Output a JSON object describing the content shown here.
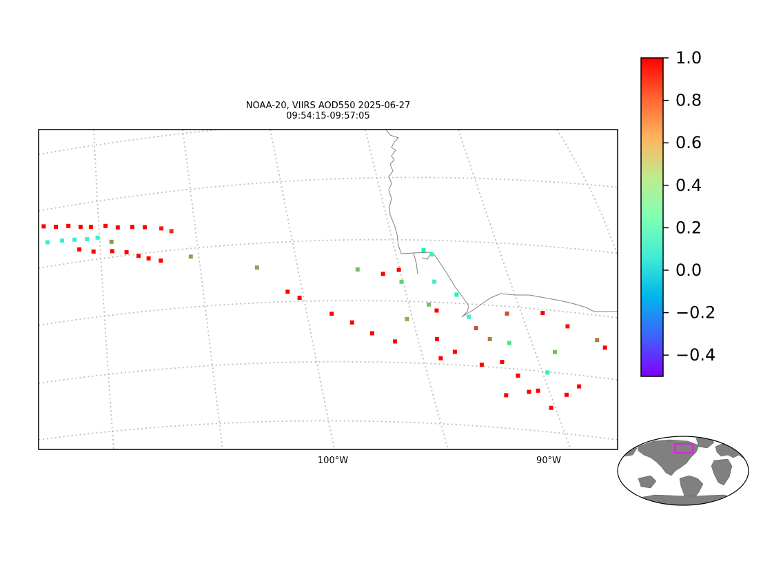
{
  "chart_data": {
    "type": "scatter",
    "title_line1": "NOAA-20, VIIRS AOD550 2025-06-27",
    "title_line2": "09:54:15-09:57:05",
    "x_tick_labels": [
      "100°W",
      "90°W"
    ],
    "colorbar": {
      "colormap": "rainbow",
      "vmin": -0.5,
      "vmax": 1.0,
      "tick_values": [
        1.0,
        0.8,
        0.6,
        0.4,
        0.2,
        0.0,
        -0.2,
        -0.4
      ],
      "tick_labels": [
        "1.0",
        "0.8",
        "0.6",
        "0.4",
        "0.2",
        "0.0",
        "−0.2",
        "−0.4"
      ]
    },
    "gridlines": true,
    "inset": "world-overview",
    "points": [
      [
        -120.2,
        52.9,
        1.0
      ],
      [
        -119.5,
        52.5,
        1.0
      ],
      [
        -118.9,
        52.3,
        1.0
      ],
      [
        -118.3,
        51.8,
        1.0
      ],
      [
        -117.6,
        51.6,
        1.0
      ],
      [
        -117.0,
        51.3,
        1.0
      ],
      [
        -116.4,
        51.1,
        1.0
      ],
      [
        -115.8,
        50.9,
        1.0
      ],
      [
        -115.2,
        50.6,
        1.0
      ],
      [
        -114.8,
        50.5,
        1.0
      ],
      [
        -114.1,
        50.2,
        1.0
      ],
      [
        -113.5,
        49.9,
        1.0
      ],
      [
        -112.9,
        49.7,
        1.0
      ],
      [
        -112.3,
        49.4,
        1.0
      ],
      [
        -111.8,
        49.2,
        1.0
      ],
      [
        -111.1,
        49.0,
        1.0
      ],
      [
        -110.5,
        48.7,
        1.0
      ],
      [
        -109.8,
        48.5,
        1.0
      ],
      [
        -109.2,
        48.3,
        1.0
      ],
      [
        -108.4,
        48.0,
        0.95
      ],
      [
        -107.9,
        47.7,
        0.9
      ],
      [
        -118.7,
        52.0,
        0.02
      ],
      [
        -114.4,
        49.4,
        0.05
      ],
      [
        -113.8,
        49.1,
        0.07
      ],
      [
        -113.1,
        48.9,
        0.08
      ],
      [
        -112.5,
        48.7,
        0.1
      ],
      [
        -111.9,
        48.5,
        0.03
      ],
      [
        -111.4,
        48.4,
        0.06
      ],
      [
        -110.7,
        47.9,
        0.7
      ],
      [
        -112.2,
        48.0,
        1.0
      ],
      [
        -111.5,
        47.6,
        1.0
      ],
      [
        -110.6,
        47.3,
        1.0
      ],
      [
        -109.9,
        47.0,
        1.0
      ],
      [
        -109.3,
        46.6,
        1.0
      ],
      [
        -108.8,
        46.3,
        1.0
      ],
      [
        -108.2,
        46.0,
        1.0
      ],
      [
        -106.8,
        45.9,
        0.68
      ],
      [
        -103.6,
        44.7,
        0.68
      ],
      [
        -102.0,
        43.1,
        1.0
      ],
      [
        -101.4,
        42.7,
        1.0
      ],
      [
        -99.8,
        41.7,
        1.0
      ],
      [
        -98.8,
        41.2,
        1.0
      ],
      [
        -97.8,
        40.6,
        1.0
      ],
      [
        -96.7,
        40.2,
        1.0
      ],
      [
        -96.3,
        41.6,
        0.65
      ],
      [
        -95.4,
        42.6,
        0.6
      ],
      [
        -94.8,
        40.6,
        1.0
      ],
      [
        -95.0,
        42.3,
        1.0
      ],
      [
        -93.5,
        42.2,
        0.1
      ],
      [
        -91.8,
        42.8,
        0.85
      ],
      [
        -90.2,
        43.3,
        1.0
      ],
      [
        -89.0,
        42.9,
        0.95
      ],
      [
        -87.6,
        42.6,
        0.75
      ],
      [
        -87.2,
        42.3,
        1.0
      ],
      [
        -97.7,
        44.2,
        1.0
      ],
      [
        -97.0,
        44.5,
        1.0
      ],
      [
        -98.9,
        44.4,
        0.6
      ],
      [
        -96.8,
        43.8,
        0.55
      ],
      [
        -96.0,
        45.8,
        0.28
      ],
      [
        -95.6,
        45.6,
        0.15
      ],
      [
        -95.3,
        44.0,
        0.05
      ],
      [
        -94.2,
        43.4,
        0.22
      ],
      [
        -93.1,
        41.6,
        0.85
      ],
      [
        -92.4,
        41.1,
        0.75
      ],
      [
        -91.7,
        39.9,
        1.0
      ],
      [
        -90.9,
        39.3,
        1.0
      ],
      [
        -90.3,
        38.5,
        1.0
      ],
      [
        -89.9,
        38.7,
        1.0
      ],
      [
        -89.2,
        37.9,
        1.0
      ],
      [
        -88.6,
        38.9,
        1.0
      ],
      [
        -88.1,
        39.6,
        1.0
      ],
      [
        -91.3,
        38.0,
        1.0
      ],
      [
        -92.6,
        39.5,
        1.0
      ],
      [
        -93.9,
        40.0,
        1.0
      ],
      [
        -94.5,
        39.5,
        1.0
      ],
      [
        -91.5,
        41.1,
        0.45
      ],
      [
        -89.4,
        41.2,
        0.6
      ],
      [
        -89.6,
        39.9,
        0.35
      ]
    ]
  }
}
